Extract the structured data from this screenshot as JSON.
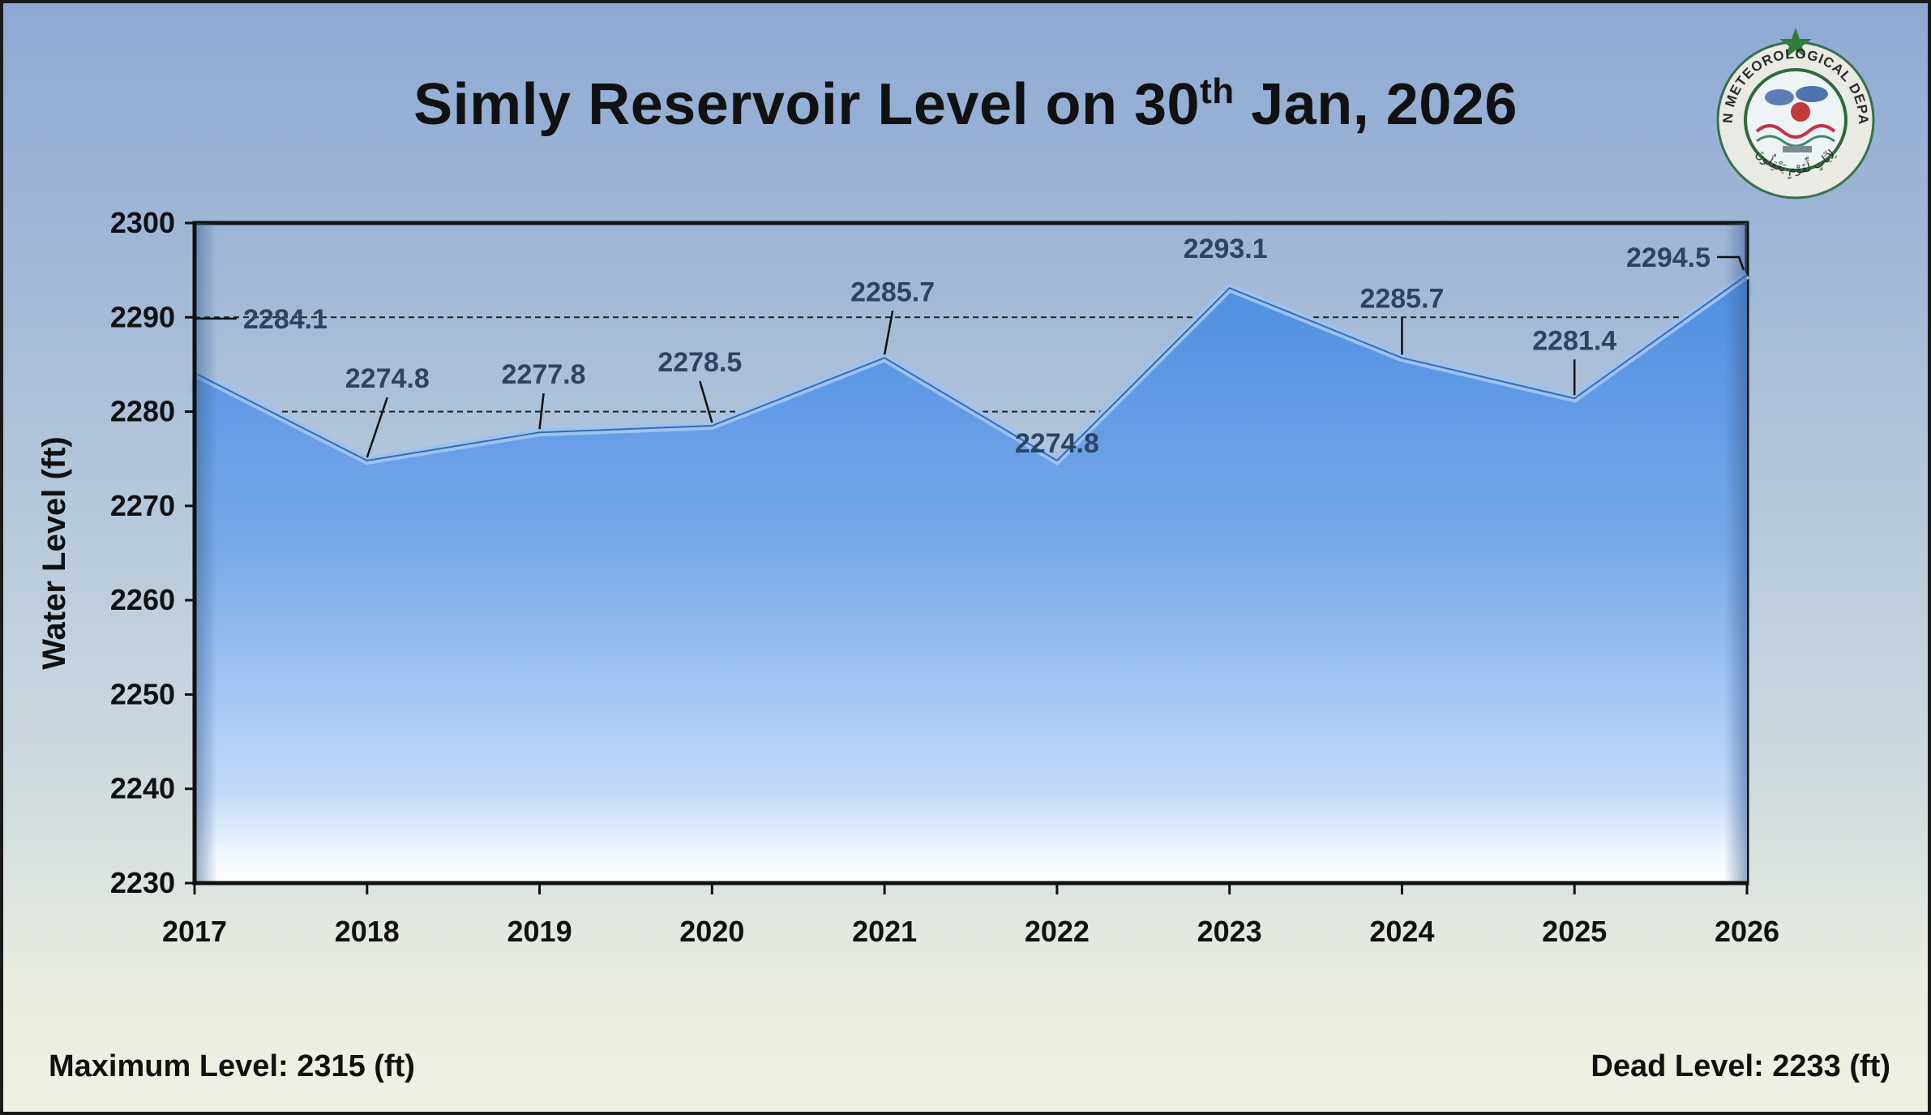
{
  "title": {
    "main": "Simly Reservoir Level on 30",
    "sup": "th",
    "rest": " Jan, 2026"
  },
  "footer": {
    "max_level": "Maximum Level: 2315 (ft)",
    "dead_level": "Dead Level: 2233 (ft)"
  },
  "logo": {
    "name": "PAKISTAN METEOROLOGICAL DEPARTMENT",
    "motto": "لِآيَاتٍ لِّقَوْمٍ يَعْقِلُونَ"
  },
  "colors": {
    "area_top": "#4d8fe0",
    "area_bottom": "#cfe2fb",
    "data_label": "#2d4563",
    "frame": "#111111"
  },
  "chart_data": {
    "type": "area",
    "title": "Simly Reservoir Level on 30th Jan, 2026",
    "xlabel": "",
    "ylabel": "Water Level (ft)",
    "ylim": [
      2230,
      2300
    ],
    "yticks": [
      2230,
      2240,
      2250,
      2260,
      2270,
      2280,
      2290,
      2300
    ],
    "reference_lines": [
      2280,
      2290
    ],
    "grid": false,
    "categories": [
      "2017",
      "2018",
      "2019",
      "2020",
      "2021",
      "2022",
      "2023",
      "2024",
      "2025",
      "2026"
    ],
    "values": [
      2284.1,
      2274.8,
      2277.8,
      2278.5,
      2285.7,
      2274.8,
      2293.1,
      2285.7,
      2281.4,
      2294.5
    ],
    "labels": [
      "2284.1",
      "2274.8",
      "2277.8",
      "2278.5",
      "2285.7",
      "2274.8",
      "2293.1",
      "2285.7",
      "2281.4",
      "2294.5"
    ]
  }
}
